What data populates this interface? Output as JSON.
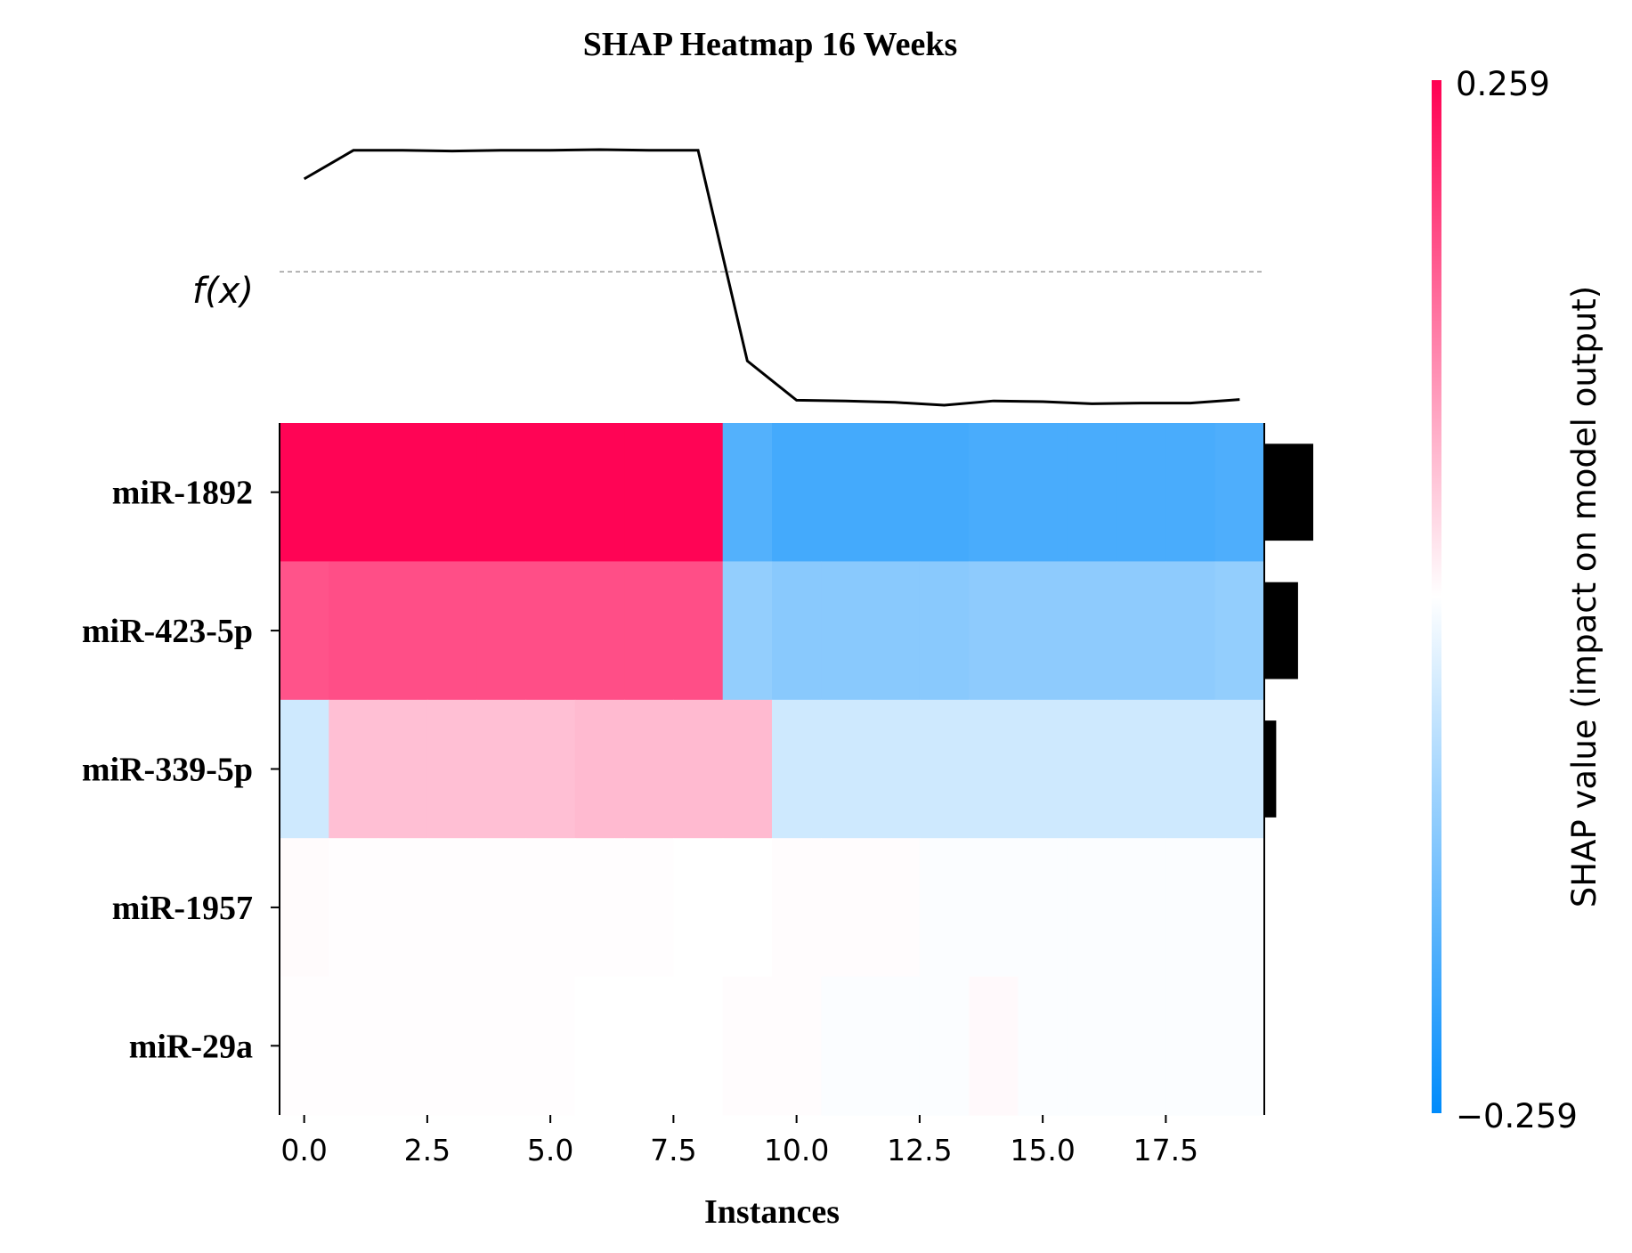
{
  "chart_data": {
    "type": "heatmap",
    "title": "SHAP Heatmap 16 Weeks",
    "xlabel": "Instances",
    "fx_label": "f(x)",
    "x_ticks": [
      "0.0",
      "2.5",
      "5.0",
      "7.5",
      "10.0",
      "12.5",
      "15.0",
      "17.5"
    ],
    "x_tick_values": [
      0,
      2.5,
      5,
      7.5,
      10,
      12.5,
      15,
      17.5
    ],
    "xlim": [
      -0.5,
      19.5
    ],
    "instances": [
      0,
      1,
      2,
      3,
      4,
      5,
      6,
      7,
      8,
      9,
      10,
      11,
      12,
      13,
      14,
      15,
      16,
      17,
      18,
      19
    ],
    "features": [
      "miR-1892",
      "miR-423-5p",
      "miR-339-5p",
      "miR-1957",
      "miR-29a"
    ],
    "shap_values": [
      [
        0.255,
        0.255,
        0.255,
        0.255,
        0.255,
        0.255,
        0.255,
        0.255,
        0.255,
        -0.175,
        -0.19,
        -0.19,
        -0.19,
        -0.19,
        -0.185,
        -0.185,
        -0.185,
        -0.185,
        -0.185,
        -0.18
      ],
      [
        0.175,
        0.18,
        0.18,
        0.18,
        0.18,
        0.18,
        0.18,
        0.18,
        0.18,
        -0.11,
        -0.12,
        -0.12,
        -0.12,
        -0.12,
        -0.115,
        -0.115,
        -0.115,
        -0.115,
        -0.115,
        -0.11
      ],
      [
        -0.05,
        0.065,
        0.065,
        0.065,
        0.065,
        0.065,
        0.07,
        0.07,
        0.07,
        0.07,
        -0.05,
        -0.05,
        -0.05,
        -0.05,
        -0.05,
        -0.05,
        -0.05,
        -0.05,
        -0.05,
        -0.05
      ],
      [
        0.004,
        0.002,
        0.002,
        0.002,
        0.002,
        0.002,
        0.002,
        0.002,
        0.0,
        0.0,
        0.003,
        0.003,
        0.003,
        -0.004,
        -0.004,
        -0.004,
        -0.004,
        -0.004,
        -0.004,
        -0.004
      ],
      [
        0.002,
        0.002,
        0.002,
        0.002,
        0.002,
        0.002,
        0.0,
        0.0,
        0.0,
        0.003,
        0.003,
        -0.004,
        -0.004,
        -0.004,
        0.006,
        -0.004,
        -0.004,
        -0.004,
        -0.004,
        -0.004
      ]
    ],
    "fx_values": [
      0.83,
      0.87,
      0.87,
      0.869,
      0.87,
      0.87,
      0.871,
      0.87,
      0.87,
      0.575,
      0.52,
      0.519,
      0.517,
      0.513,
      0.519,
      0.518,
      0.515,
      0.516,
      0.516,
      0.521
    ],
    "fx_base_value": 0.7,
    "mean_abs_shap": [
      0.222,
      0.153,
      0.054,
      0.003,
      0.003
    ],
    "colorbar": {
      "label": "SHAP value (impact on model output)",
      "max_label": "0.259",
      "min_label": "−0.259",
      "vmin": -0.259,
      "vmax": 0.259,
      "color_max": "#ff0052",
      "color_mid": "#ffffff",
      "color_min": "#008bfb"
    }
  }
}
